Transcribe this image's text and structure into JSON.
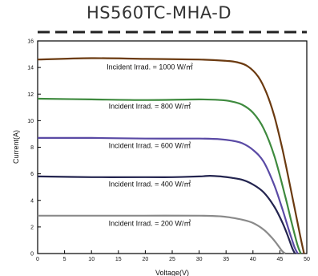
{
  "chart_data": {
    "type": "line",
    "title": "HS560TC-MHA-D",
    "xlabel": "Voltage(V)",
    "ylabel": "Current(A)",
    "xlim": [
      0,
      50
    ],
    "ylim": [
      0,
      16
    ],
    "xticks": [
      0,
      5,
      10,
      15,
      20,
      25,
      30,
      35,
      40,
      45,
      50
    ],
    "yticks": [
      0,
      2,
      4,
      6,
      8,
      10,
      12,
      14,
      16
    ],
    "grid": false,
    "series": [
      {
        "label": "Incident Irrad. = 1000 W/㎡",
        "color": "#6b3a10",
        "x": [
          0,
          10,
          20,
          30,
          35,
          37,
          39,
          41,
          42.5,
          44,
          45.5,
          47,
          48.2,
          49.0,
          49.5
        ],
        "y": [
          14.6,
          14.7,
          14.65,
          14.6,
          14.5,
          14.4,
          14.1,
          13.3,
          12.1,
          10.3,
          7.8,
          4.9,
          2.5,
          0.9,
          0.0
        ]
      },
      {
        "label": "Incident Irrad. = 800 W/㎡",
        "color": "#3e8a3e",
        "x": [
          0,
          10,
          20,
          30,
          34,
          36,
          38,
          40,
          42,
          44,
          46,
          47.2,
          48.3,
          48.9
        ],
        "y": [
          11.65,
          11.6,
          11.55,
          11.6,
          11.55,
          11.45,
          11.2,
          10.6,
          9.4,
          7.3,
          4.3,
          2.3,
          0.6,
          0.0
        ]
      },
      {
        "label": "Incident Irrad. = 600 W/㎡",
        "color": "#5a4aa5",
        "x": [
          0,
          10,
          20,
          30,
          34,
          36,
          38,
          40,
          42,
          44,
          45.5,
          46.8,
          47.7,
          48.3
        ],
        "y": [
          8.7,
          8.7,
          8.65,
          8.65,
          8.6,
          8.5,
          8.3,
          7.8,
          6.9,
          5.1,
          3.3,
          1.6,
          0.5,
          0.0
        ]
      },
      {
        "label": "Incident Irrad. = 400 W/㎡",
        "color": "#23244f",
        "x": [
          0,
          10,
          20,
          25,
          30,
          32,
          34,
          36,
          38,
          40,
          42,
          44,
          45.5,
          46.5,
          47.3,
          47.8
        ],
        "y": [
          5.8,
          5.75,
          5.75,
          5.75,
          5.8,
          5.85,
          5.8,
          5.7,
          5.55,
          5.2,
          4.6,
          3.5,
          2.3,
          1.3,
          0.4,
          0.0
        ]
      },
      {
        "label": "Incident Irrad. = 200 W/㎡",
        "color": "#8a8a8a",
        "x": [
          0,
          10,
          20,
          30,
          34,
          36,
          38,
          40,
          42,
          43.5,
          44.5,
          45.4,
          46.0
        ],
        "y": [
          2.85,
          2.85,
          2.85,
          2.85,
          2.8,
          2.7,
          2.55,
          2.3,
          1.8,
          1.2,
          0.7,
          0.2,
          0.0
        ]
      }
    ]
  }
}
